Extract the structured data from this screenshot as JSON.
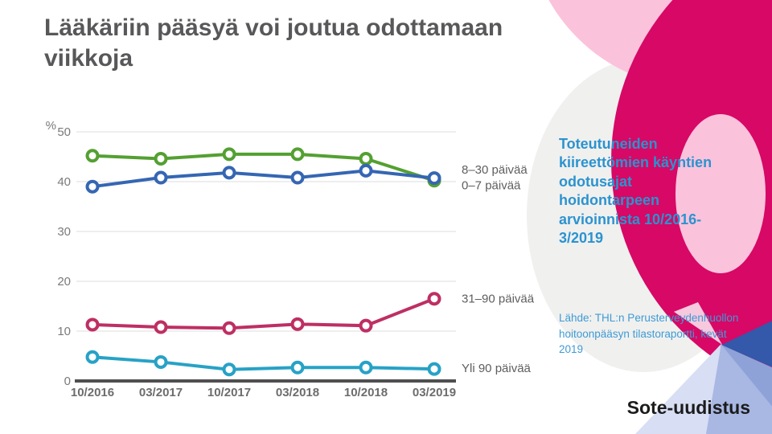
{
  "slide": {
    "title": "Lääkäriin pääsyä voi joutua odottamaan viikkoja"
  },
  "sidebar": {
    "heading": "Toteutuneiden kiireettömien käyntien odotusajat hoidontarpeen arvioinnista 10/2016-3/2019",
    "source_note": "Lähde: THL:n Perusterveydenhuollon hoitoonpääsyn tilastoraportti, kevät 2019",
    "logo_icon": "finnish-lion-coat-of-arms-icon"
  },
  "footer": {
    "brand": "Sote-uudistus"
  },
  "colors": {
    "magenta": "#D70866",
    "light_pink": "#FBC2DC",
    "light_gray": "#F0F0EF",
    "heading_blue": "#2B93CF",
    "source_blue": "#3E9BD5",
    "dark_blue_wedge": "#3458AA",
    "periwinkle": "#A9B7E3",
    "title_gray": "#58585A"
  },
  "chart_data": {
    "type": "line",
    "title": "",
    "unit_label": "%",
    "xlabel": "",
    "ylabel": "%",
    "ylim": [
      0,
      50
    ],
    "yticks": [
      0,
      10,
      20,
      30,
      40,
      50
    ],
    "grid": true,
    "legend_position": "right-of-line-end",
    "categories": [
      "10/2016",
      "03/2017",
      "10/2017",
      "03/2018",
      "10/2018",
      "03/2019"
    ],
    "series": [
      {
        "name": "8–30 päivää",
        "color": "#54A032",
        "values": [
          45.2,
          44.6,
          45.5,
          45.5,
          44.6,
          40.2
        ]
      },
      {
        "name": "0–7 päivää",
        "color": "#3566B3",
        "values": [
          39.0,
          40.8,
          41.8,
          40.8,
          42.2,
          40.7
        ]
      },
      {
        "name": "31–90 päivää",
        "color": "#BE2F63",
        "values": [
          11.3,
          10.8,
          10.6,
          11.4,
          11.1,
          16.5
        ]
      },
      {
        "name": "Yli 90 päivää",
        "color": "#27A2C6",
        "values": [
          4.8,
          3.8,
          2.3,
          2.7,
          2.7,
          2.4
        ]
      }
    ],
    "axis_text_color": "#7A7A7A",
    "category_text_color": "#6C6C6C",
    "legend_text_color": "#5E5E5E",
    "gridline_color": "#E9E9E9",
    "axis_line_color": "#4F4F4F"
  }
}
